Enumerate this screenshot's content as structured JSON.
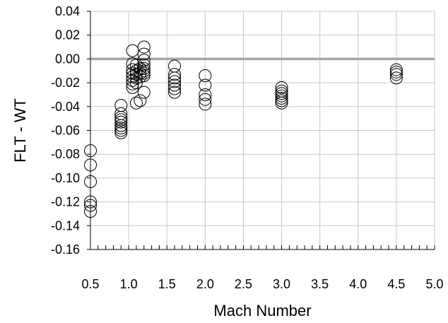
{
  "chart_data": {
    "type": "scatter",
    "title": "",
    "xlabel": "Mach Number",
    "ylabel": "FLT - WT",
    "xlim": [
      0.5,
      5.0
    ],
    "ylim": [
      -0.16,
      0.04
    ],
    "x_ticks": [
      "0.5",
      "1.0",
      "1.5",
      "2.0",
      "2.5",
      "3.0",
      "3.5",
      "4.0",
      "4.5",
      "5.0"
    ],
    "x_tick_values": [
      0.5,
      1.0,
      1.5,
      2.0,
      2.5,
      3.0,
      3.5,
      4.0,
      4.5,
      5.0
    ],
    "y_ticks": [
      "0.04",
      "0.02",
      "0.00",
      "-0.02",
      "-0.04",
      "-0.06",
      "-0.08",
      "-0.10",
      "-0.12",
      "-0.14",
      "-0.16"
    ],
    "y_tick_values": [
      0.04,
      0.02,
      0.0,
      -0.02,
      -0.04,
      -0.06,
      -0.08,
      -0.1,
      -0.12,
      -0.14,
      -0.16
    ],
    "x_minor_step": 0.1,
    "grid": true,
    "reference_line": {
      "y": 0.0,
      "color": "#a6a6a6"
    },
    "marker": "open-circle",
    "marker_color": "#000000",
    "series": [
      {
        "points": [
          [
            0.5,
            -0.077
          ],
          [
            0.5,
            -0.089
          ],
          [
            0.5,
            -0.103
          ],
          [
            0.5,
            -0.12
          ],
          [
            0.5,
            -0.123
          ],
          [
            0.5,
            -0.128
          ],
          [
            0.9,
            -0.039
          ],
          [
            0.9,
            -0.046
          ],
          [
            0.9,
            -0.049
          ],
          [
            0.9,
            -0.051
          ],
          [
            0.9,
            -0.053
          ],
          [
            0.9,
            -0.056
          ],
          [
            0.9,
            -0.058
          ],
          [
            0.9,
            -0.06
          ],
          [
            0.9,
            -0.062
          ],
          [
            1.05,
            0.007
          ],
          [
            1.05,
            -0.004
          ],
          [
            1.05,
            -0.009
          ],
          [
            1.05,
            -0.012
          ],
          [
            1.05,
            -0.015
          ],
          [
            1.05,
            -0.018
          ],
          [
            1.05,
            -0.021
          ],
          [
            1.05,
            -0.024
          ],
          [
            1.1,
            -0.005
          ],
          [
            1.1,
            -0.01
          ],
          [
            1.1,
            -0.013
          ],
          [
            1.1,
            -0.016
          ],
          [
            1.1,
            -0.02
          ],
          [
            1.1,
            -0.037
          ],
          [
            1.15,
            -0.008
          ],
          [
            1.15,
            -0.012
          ],
          [
            1.15,
            -0.015
          ],
          [
            1.15,
            -0.035
          ],
          [
            1.2,
            0.01
          ],
          [
            1.2,
            0.004
          ],
          [
            1.2,
            -0.001
          ],
          [
            1.2,
            -0.005
          ],
          [
            1.2,
            -0.008
          ],
          [
            1.2,
            -0.01
          ],
          [
            1.2,
            -0.012
          ],
          [
            1.2,
            -0.014
          ],
          [
            1.2,
            -0.028
          ],
          [
            1.6,
            -0.006
          ],
          [
            1.6,
            -0.013
          ],
          [
            1.6,
            -0.016
          ],
          [
            1.6,
            -0.019
          ],
          [
            1.6,
            -0.022
          ],
          [
            1.6,
            -0.025
          ],
          [
            1.6,
            -0.028
          ],
          [
            2.0,
            -0.014
          ],
          [
            2.0,
            -0.022
          ],
          [
            2.0,
            -0.03
          ],
          [
            2.0,
            -0.034
          ],
          [
            2.0,
            -0.038
          ],
          [
            3.0,
            -0.024
          ],
          [
            3.0,
            -0.027
          ],
          [
            3.0,
            -0.029
          ],
          [
            3.0,
            -0.031
          ],
          [
            3.0,
            -0.033
          ],
          [
            3.0,
            -0.035
          ],
          [
            3.0,
            -0.037
          ],
          [
            4.5,
            -0.009
          ],
          [
            4.5,
            -0.011
          ],
          [
            4.5,
            -0.013
          ],
          [
            4.5,
            -0.016
          ]
        ]
      }
    ]
  }
}
